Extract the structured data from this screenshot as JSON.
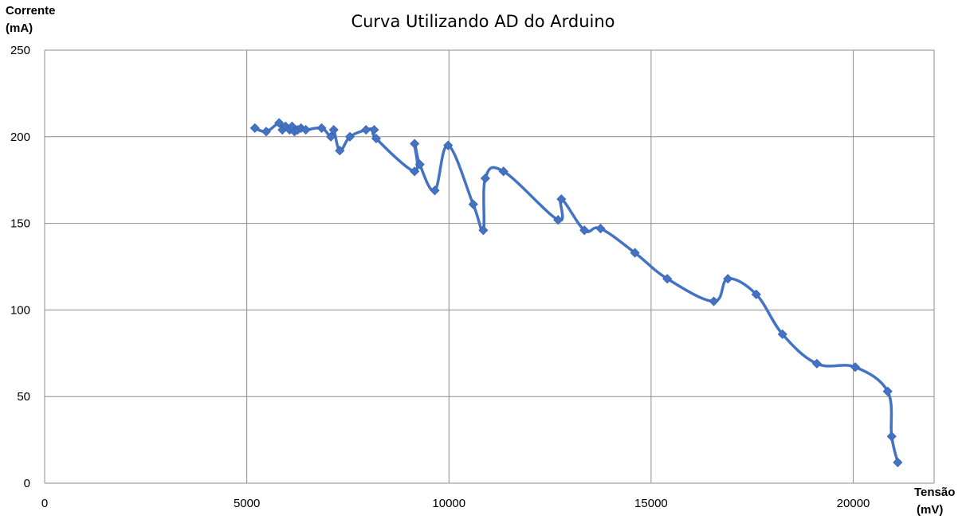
{
  "chart_data": {
    "type": "scatter",
    "title": "Curva Utilizando AD do Arduino",
    "ylabel_line1": "Corrente",
    "ylabel_line2": "(mA)",
    "xlabel_line1": "Tensão",
    "xlabel_line2": "(mV)",
    "xlim": [
      0,
      22000
    ],
    "ylim": [
      0,
      250
    ],
    "x_ticks": [
      0,
      5000,
      10000,
      15000,
      20000
    ],
    "y_ticks": [
      0,
      50,
      100,
      150,
      200,
      250
    ],
    "grid": true,
    "smooth": true,
    "marker": "diamond",
    "series_color": "#4472C4",
    "series": [
      {
        "points": [
          [
            5200,
            205
          ],
          [
            5480,
            203
          ],
          [
            5800,
            208
          ],
          [
            5880,
            204
          ],
          [
            5960,
            206
          ],
          [
            6060,
            204
          ],
          [
            6120,
            206
          ],
          [
            6180,
            203
          ],
          [
            6260,
            204
          ],
          [
            6340,
            205
          ],
          [
            6460,
            204
          ],
          [
            6850,
            205
          ],
          [
            7080,
            200
          ],
          [
            7150,
            204
          ],
          [
            7300,
            192
          ],
          [
            7550,
            200
          ],
          [
            7950,
            204
          ],
          [
            8150,
            204
          ],
          [
            8200,
            199
          ],
          [
            9150,
            180
          ],
          [
            9150,
            196
          ],
          [
            9280,
            184
          ],
          [
            9650,
            169
          ],
          [
            9980,
            195
          ],
          [
            10600,
            161
          ],
          [
            10850,
            146
          ],
          [
            10900,
            176
          ],
          [
            11350,
            180
          ],
          [
            12700,
            152
          ],
          [
            12780,
            164
          ],
          [
            13350,
            146
          ],
          [
            13750,
            147
          ],
          [
            14600,
            133
          ],
          [
            15400,
            118
          ],
          [
            16550,
            105
          ],
          [
            16900,
            118
          ],
          [
            17600,
            109
          ],
          [
            18250,
            86
          ],
          [
            19100,
            69
          ],
          [
            20050,
            67
          ],
          [
            20850,
            53
          ],
          [
            20950,
            27
          ],
          [
            21100,
            12
          ]
        ]
      }
    ]
  }
}
